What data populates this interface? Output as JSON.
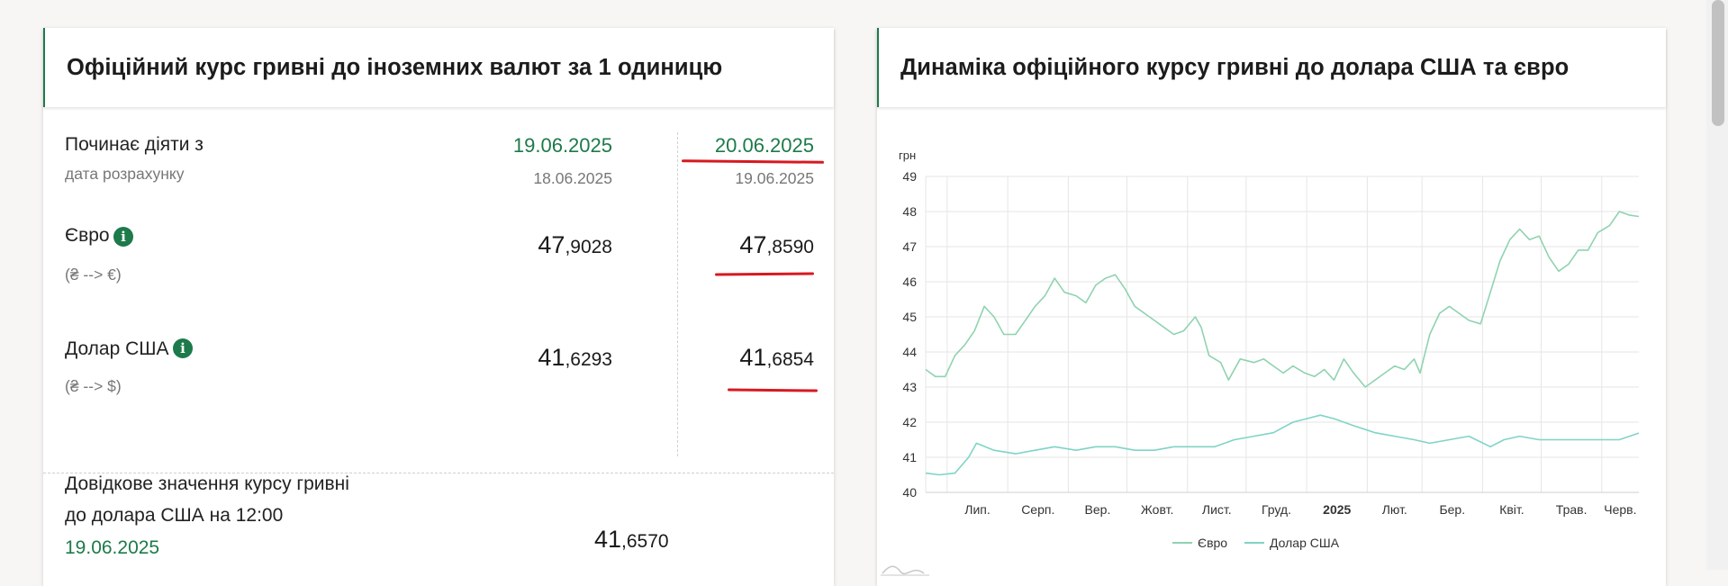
{
  "left_card": {
    "title": "Офіційний курс гривні до іноземних валют за 1 одиницю",
    "effective_label": "Починає діяти з",
    "calc_date_label": "дата розрахунку",
    "col1": {
      "effective_date": "19.06.2025",
      "calc_date": "18.06.2025"
    },
    "col2": {
      "effective_date": "20.06.2025",
      "calc_date": "19.06.2025"
    },
    "currencies": [
      {
        "name": "Євро",
        "direction": "(₴ --> €)",
        "rate1_int": "47",
        "rate1_frac": ",9028",
        "rate2_int": "47",
        "rate2_frac": ",8590"
      },
      {
        "name": "Долар США",
        "direction": "(₴ --> $)",
        "rate1_int": "41",
        "rate1_frac": ",6293",
        "rate2_int": "41",
        "rate2_frac": ",6854"
      }
    ],
    "reference": {
      "line1": "Довідкове значення курсу гривні",
      "line2": "до долара США на 12:00",
      "date": "19.06.2025",
      "value_int": "41",
      "value_frac": ",6570"
    },
    "info_glyph": "i"
  },
  "right_card": {
    "title": "Динаміка офіційного курсу гривні до долара США та євро"
  },
  "colors": {
    "accent_green": "#1d7a4a",
    "underline_red": "#d71920",
    "euro_line": "#8fd3b0",
    "usd_line": "#7fd4c6"
  },
  "chart_data": {
    "type": "line",
    "title": "Динаміка офіційного курсу гривні до долара США та євро",
    "ylabel": "грн",
    "ylim": [
      40,
      49
    ],
    "yticks": [
      40,
      41,
      42,
      43,
      44,
      45,
      46,
      47,
      48,
      49
    ],
    "x_range": [
      "2024-06-20",
      "2025-06-20"
    ],
    "xticks": [
      {
        "label": "Лип.",
        "date": "2024-07-01",
        "bold": false
      },
      {
        "label": "Серп.",
        "date": "2024-08-01",
        "bold": false
      },
      {
        "label": "Вер.",
        "date": "2024-09-01",
        "bold": false
      },
      {
        "label": "Жовт.",
        "date": "2024-10-01",
        "bold": false
      },
      {
        "label": "Лист.",
        "date": "2024-11-01",
        "bold": false
      },
      {
        "label": "Груд.",
        "date": "2024-12-01",
        "bold": false
      },
      {
        "label": "2025",
        "date": "2025-01-01",
        "bold": true
      },
      {
        "label": "Лют.",
        "date": "2025-02-01",
        "bold": false
      },
      {
        "label": "Бер.",
        "date": "2025-03-01",
        "bold": false
      },
      {
        "label": "Квіт.",
        "date": "2025-04-01",
        "bold": false
      },
      {
        "label": "Трав.",
        "date": "2025-05-01",
        "bold": false
      },
      {
        "label": "Черв.",
        "date": "2025-06-01",
        "bold": false
      }
    ],
    "grid": true,
    "legend_position": "bottom-center",
    "series": [
      {
        "name": "Євро",
        "color": "#8fd3b0",
        "points": [
          [
            "2024-06-20",
            43.5
          ],
          [
            "2024-06-25",
            43.3
          ],
          [
            "2024-06-30",
            43.3
          ],
          [
            "2024-07-05",
            43.9
          ],
          [
            "2024-07-10",
            44.2
          ],
          [
            "2024-07-15",
            44.6
          ],
          [
            "2024-07-20",
            45.3
          ],
          [
            "2024-07-25",
            45.0
          ],
          [
            "2024-07-30",
            44.5
          ],
          [
            "2024-08-05",
            44.5
          ],
          [
            "2024-08-10",
            44.9
          ],
          [
            "2024-08-15",
            45.3
          ],
          [
            "2024-08-20",
            45.6
          ],
          [
            "2024-08-25",
            46.1
          ],
          [
            "2024-08-30",
            45.7
          ],
          [
            "2024-09-05",
            45.6
          ],
          [
            "2024-09-10",
            45.4
          ],
          [
            "2024-09-15",
            45.9
          ],
          [
            "2024-09-20",
            46.1
          ],
          [
            "2024-09-25",
            46.2
          ],
          [
            "2024-09-30",
            45.8
          ],
          [
            "2024-10-05",
            45.3
          ],
          [
            "2024-10-10",
            45.1
          ],
          [
            "2024-10-15",
            44.9
          ],
          [
            "2024-10-20",
            44.7
          ],
          [
            "2024-10-25",
            44.5
          ],
          [
            "2024-10-30",
            44.6
          ],
          [
            "2024-11-05",
            45.0
          ],
          [
            "2024-11-08",
            44.7
          ],
          [
            "2024-11-12",
            43.9
          ],
          [
            "2024-11-18",
            43.7
          ],
          [
            "2024-11-22",
            43.2
          ],
          [
            "2024-11-28",
            43.8
          ],
          [
            "2024-12-05",
            43.7
          ],
          [
            "2024-12-10",
            43.8
          ],
          [
            "2024-12-15",
            43.6
          ],
          [
            "2024-12-20",
            43.4
          ],
          [
            "2024-12-25",
            43.6
          ],
          [
            "2024-12-31",
            43.4
          ],
          [
            "2025-01-05",
            43.3
          ],
          [
            "2025-01-10",
            43.5
          ],
          [
            "2025-01-15",
            43.2
          ],
          [
            "2025-01-20",
            43.8
          ],
          [
            "2025-01-25",
            43.4
          ],
          [
            "2025-01-31",
            43.0
          ],
          [
            "2025-02-05",
            43.2
          ],
          [
            "2025-02-10",
            43.4
          ],
          [
            "2025-02-15",
            43.6
          ],
          [
            "2025-02-20",
            43.5
          ],
          [
            "2025-02-25",
            43.8
          ],
          [
            "2025-02-28",
            43.4
          ],
          [
            "2025-03-05",
            44.5
          ],
          [
            "2025-03-10",
            45.1
          ],
          [
            "2025-03-15",
            45.3
          ],
          [
            "2025-03-20",
            45.1
          ],
          [
            "2025-03-25",
            44.9
          ],
          [
            "2025-03-31",
            44.8
          ],
          [
            "2025-04-05",
            45.7
          ],
          [
            "2025-04-10",
            46.6
          ],
          [
            "2025-04-15",
            47.2
          ],
          [
            "2025-04-20",
            47.5
          ],
          [
            "2025-04-25",
            47.2
          ],
          [
            "2025-04-30",
            47.3
          ],
          [
            "2025-05-05",
            46.7
          ],
          [
            "2025-05-10",
            46.3
          ],
          [
            "2025-05-15",
            46.5
          ],
          [
            "2025-05-20",
            46.9
          ],
          [
            "2025-05-25",
            46.9
          ],
          [
            "2025-05-30",
            47.4
          ],
          [
            "2025-06-05",
            47.6
          ],
          [
            "2025-06-10",
            48.0
          ],
          [
            "2025-06-15",
            47.9
          ],
          [
            "2025-06-20",
            47.86
          ]
        ]
      },
      {
        "name": "Долар США",
        "color": "#7fd4c6",
        "points": [
          [
            "2024-06-20",
            40.55
          ],
          [
            "2024-06-27",
            40.5
          ],
          [
            "2024-07-05",
            40.55
          ],
          [
            "2024-07-12",
            41.0
          ],
          [
            "2024-07-16",
            41.4
          ],
          [
            "2024-07-25",
            41.2
          ],
          [
            "2024-08-05",
            41.1
          ],
          [
            "2024-08-15",
            41.2
          ],
          [
            "2024-08-25",
            41.3
          ],
          [
            "2024-09-05",
            41.2
          ],
          [
            "2024-09-15",
            41.3
          ],
          [
            "2024-09-25",
            41.3
          ],
          [
            "2024-10-05",
            41.2
          ],
          [
            "2024-10-15",
            41.2
          ],
          [
            "2024-10-25",
            41.3
          ],
          [
            "2024-11-05",
            41.3
          ],
          [
            "2024-11-15",
            41.3
          ],
          [
            "2024-11-25",
            41.5
          ],
          [
            "2024-12-05",
            41.6
          ],
          [
            "2024-12-15",
            41.7
          ],
          [
            "2024-12-25",
            42.0
          ],
          [
            "2025-01-01",
            42.1
          ],
          [
            "2025-01-08",
            42.2
          ],
          [
            "2025-01-15",
            42.1
          ],
          [
            "2025-01-25",
            41.9
          ],
          [
            "2025-02-05",
            41.7
          ],
          [
            "2025-02-15",
            41.6
          ],
          [
            "2025-02-25",
            41.5
          ],
          [
            "2025-03-05",
            41.4
          ],
          [
            "2025-03-15",
            41.5
          ],
          [
            "2025-03-25",
            41.6
          ],
          [
            "2025-04-05",
            41.3
          ],
          [
            "2025-04-12",
            41.5
          ],
          [
            "2025-04-20",
            41.6
          ],
          [
            "2025-04-30",
            41.5
          ],
          [
            "2025-05-10",
            41.5
          ],
          [
            "2025-05-20",
            41.5
          ],
          [
            "2025-05-31",
            41.5
          ],
          [
            "2025-06-10",
            41.5
          ],
          [
            "2025-06-20",
            41.69
          ]
        ]
      }
    ]
  }
}
